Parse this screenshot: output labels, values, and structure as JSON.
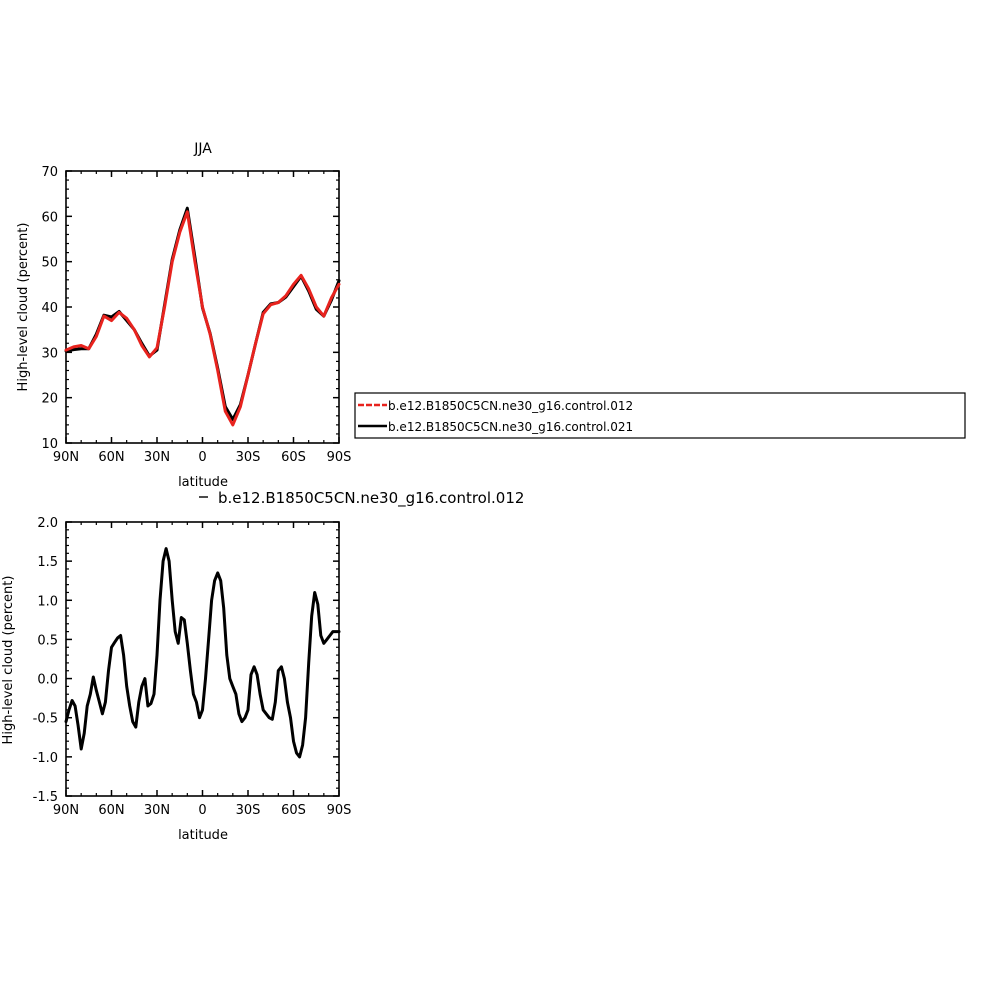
{
  "chart_data": [
    {
      "type": "line",
      "title": "JJA",
      "xlabel": "latitude",
      "ylabel": "High-level cloud (percent)",
      "xlim": [
        90,
        -90
      ],
      "ylim": [
        10,
        70
      ],
      "x_ticks": [
        90,
        60,
        30,
        0,
        -30,
        -60,
        -90
      ],
      "x_tick_labels": [
        "90N",
        "60N",
        "30N",
        "0",
        "30S",
        "60S",
        "90S"
      ],
      "y_ticks": [
        10,
        20,
        30,
        40,
        50,
        60,
        70
      ],
      "y_tick_labels": [
        "10",
        "20",
        "30",
        "40",
        "50",
        "60",
        "70"
      ],
      "legend_position": "right",
      "series": [
        {
          "name": "b.e12.B1850C5CN.ne30_g16.control.012",
          "color": "#e8231e",
          "x": [
            90,
            85,
            80,
            75,
            70,
            65,
            60,
            55,
            50,
            45,
            40,
            35,
            30,
            25,
            20,
            15,
            10,
            5,
            0,
            -5,
            -10,
            -15,
            -20,
            -25,
            -30,
            -35,
            -40,
            -45,
            -50,
            -55,
            -60,
            -65,
            -70,
            -75,
            -80,
            -85,
            -90
          ],
          "values": [
            30.5,
            31.2,
            31.5,
            30.8,
            33.5,
            38.0,
            37.0,
            38.8,
            37.5,
            35.0,
            31.5,
            29.0,
            31.0,
            40.0,
            50.0,
            56.5,
            61.0,
            50.0,
            40.0,
            34.0,
            26.0,
            17.0,
            14.0,
            18.0,
            25.0,
            32.0,
            38.5,
            40.5,
            41.0,
            42.5,
            45.0,
            47.0,
            44.0,
            40.0,
            38.0,
            42.0,
            45.0
          ]
        },
        {
          "name": "b.e12.B1850C5CN.ne30_g16.control.021",
          "color": "#000000",
          "x": [
            90,
            85,
            80,
            75,
            70,
            65,
            60,
            55,
            50,
            45,
            40,
            35,
            30,
            25,
            20,
            15,
            10,
            5,
            0,
            -5,
            -10,
            -15,
            -20,
            -25,
            -30,
            -35,
            -40,
            -45,
            -50,
            -55,
            -60,
            -65,
            -70,
            -75,
            -80,
            -85,
            -90
          ],
          "values": [
            30.3,
            30.6,
            30.8,
            30.8,
            34.0,
            38.2,
            37.8,
            39.0,
            37.0,
            35.0,
            32.0,
            29.2,
            30.5,
            40.5,
            50.5,
            57.0,
            61.8,
            51.0,
            39.8,
            34.2,
            26.5,
            18.0,
            15.2,
            18.5,
            25.0,
            32.0,
            38.8,
            40.7,
            41.0,
            42.2,
            44.5,
            46.8,
            43.5,
            39.5,
            38.0,
            41.5,
            45.8
          ]
        }
      ]
    },
    {
      "type": "line",
      "title": "b.e12.B1850C5CN.ne30_g16.control.012",
      "xlabel": "latitude",
      "ylabel": "High-level cloud (percent)",
      "xlim": [
        90,
        -90
      ],
      "ylim": [
        -1.5,
        2.0
      ],
      "x_ticks": [
        90,
        60,
        30,
        0,
        -30,
        -60,
        -90
      ],
      "x_tick_labels": [
        "90N",
        "60N",
        "30N",
        "0",
        "30S",
        "60S",
        "90S"
      ],
      "y_ticks": [
        -1.5,
        -1.0,
        -0.5,
        0.0,
        0.5,
        1.0,
        1.5,
        2.0
      ],
      "y_tick_labels": [
        "-1.5",
        "-1.0",
        "-0.5",
        "0.0",
        "0.5",
        "1.0",
        "1.5",
        "2.0"
      ],
      "series": [
        {
          "color": "#000000",
          "x": [
            90,
            88,
            86,
            84,
            82,
            80,
            78,
            76,
            74,
            72,
            70,
            68,
            66,
            64,
            62,
            60,
            58,
            56,
            54,
            52,
            50,
            48,
            46,
            44,
            42,
            40,
            38,
            36,
            34,
            32,
            30,
            28,
            26,
            24,
            22,
            20,
            18,
            16,
            14,
            12,
            10,
            8,
            6,
            4,
            2,
            0,
            -2,
            -4,
            -6,
            -8,
            -10,
            -12,
            -14,
            -16,
            -18,
            -20,
            -22,
            -24,
            -26,
            -28,
            -30,
            -32,
            -34,
            -36,
            -38,
            -40,
            -42,
            -44,
            -46,
            -48,
            -50,
            -52,
            -54,
            -56,
            -58,
            -60,
            -62,
            -64,
            -66,
            -68,
            -70,
            -72,
            -74,
            -76,
            -78,
            -80,
            -82,
            -84,
            -86,
            -88,
            -90
          ],
          "values": [
            -0.55,
            -0.4,
            -0.28,
            -0.35,
            -0.6,
            -0.9,
            -0.7,
            -0.35,
            -0.2,
            0.02,
            -0.15,
            -0.3,
            -0.45,
            -0.3,
            0.1,
            0.4,
            0.46,
            0.52,
            0.55,
            0.3,
            -0.1,
            -0.35,
            -0.55,
            -0.62,
            -0.3,
            -0.1,
            0.0,
            -0.35,
            -0.32,
            -0.2,
            0.3,
            1.0,
            1.5,
            1.66,
            1.5,
            1.0,
            0.6,
            0.45,
            0.78,
            0.75,
            0.45,
            0.1,
            -0.2,
            -0.3,
            -0.5,
            -0.4,
            0.0,
            0.5,
            1.0,
            1.25,
            1.35,
            1.25,
            0.9,
            0.3,
            0.0,
            -0.1,
            -0.2,
            -0.45,
            -0.55,
            -0.5,
            -0.4,
            0.05,
            0.15,
            0.05,
            -0.2,
            -0.4,
            -0.45,
            -0.5,
            -0.52,
            -0.3,
            0.1,
            0.15,
            0.0,
            -0.3,
            -0.5,
            -0.8,
            -0.95,
            -1.0,
            -0.85,
            -0.5,
            0.2,
            0.8,
            1.1,
            0.95,
            0.55,
            0.45,
            0.5,
            0.55,
            0.6,
            0.6,
            0.6
          ]
        }
      ]
    }
  ]
}
